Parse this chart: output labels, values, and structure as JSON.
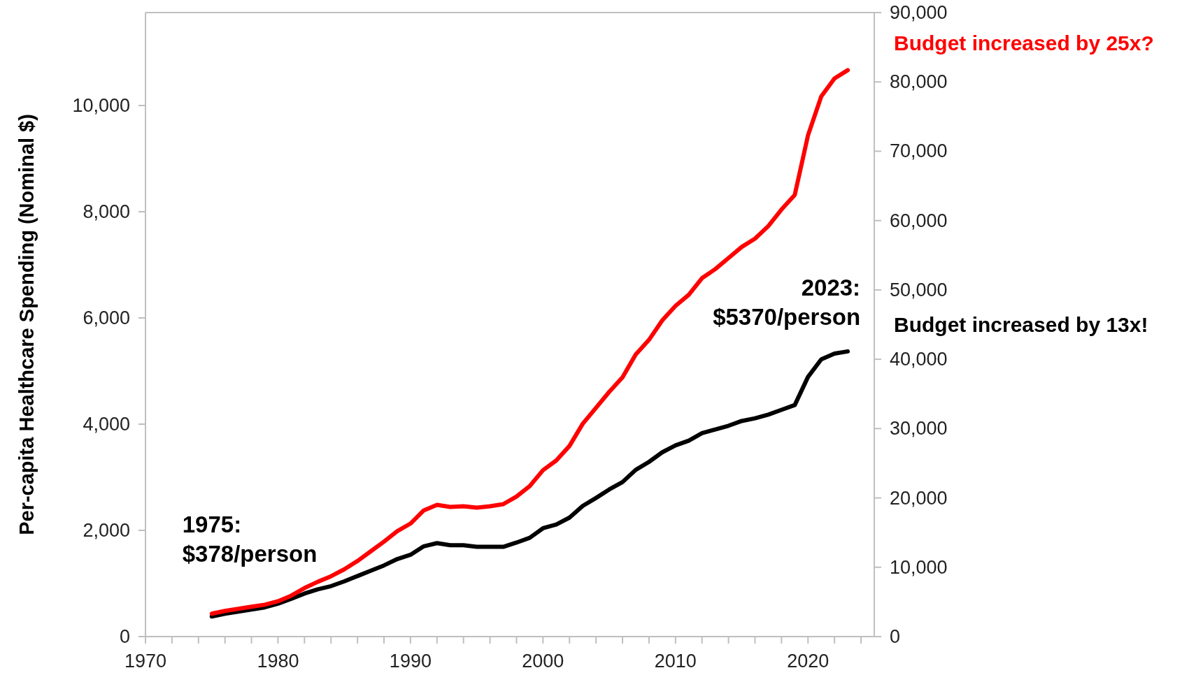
{
  "chart_data": {
    "type": "line",
    "ylabel": "Per-capita Healthcare Spending (Nominal $)",
    "x": [
      1975,
      1976,
      1977,
      1978,
      1979,
      1980,
      1981,
      1982,
      1983,
      1984,
      1985,
      1986,
      1987,
      1988,
      1989,
      1990,
      1991,
      1992,
      1993,
      1994,
      1995,
      1996,
      1997,
      1998,
      1999,
      2000,
      2001,
      2002,
      2003,
      2004,
      2005,
      2006,
      2007,
      2008,
      2009,
      2010,
      2011,
      2012,
      2013,
      2014,
      2015,
      2016,
      2017,
      2018,
      2019,
      2020,
      2021,
      2022,
      2023
    ],
    "xlim": [
      1970,
      2025
    ],
    "xticks": [
      1970,
      {
        "value": 1972,
        "label": null
      },
      {
        "value": 1974,
        "label": null
      },
      {
        "value": 1976,
        "label": null
      },
      {
        "value": 1978,
        "label": null
      },
      1980,
      {
        "value": 1982,
        "label": null
      },
      {
        "value": 1984,
        "label": null
      },
      {
        "value": 1986,
        "label": null
      },
      {
        "value": 1988,
        "label": null
      },
      1990,
      {
        "value": 1992,
        "label": null
      },
      {
        "value": 1994,
        "label": null
      },
      {
        "value": 1996,
        "label": null
      },
      {
        "value": 1998,
        "label": null
      },
      2000,
      {
        "value": 2002,
        "label": null
      },
      {
        "value": 2004,
        "label": null
      },
      {
        "value": 2006,
        "label": null
      },
      {
        "value": 2008,
        "label": null
      },
      2010,
      {
        "value": 2012,
        "label": null
      },
      {
        "value": 2014,
        "label": null
      },
      {
        "value": 2016,
        "label": null
      },
      {
        "value": 2018,
        "label": null
      },
      2020,
      {
        "value": 2022,
        "label": null
      },
      {
        "value": 2024,
        "label": null
      }
    ],
    "ylim": [
      0,
      11750
    ],
    "yticks": [
      {
        "value": 0,
        "label": "0"
      },
      {
        "value": 2000,
        "label": "2,000"
      },
      {
        "value": 4000,
        "label": "4,000"
      },
      {
        "value": 6000,
        "label": "6,000"
      },
      {
        "value": 8000,
        "label": "8,000"
      },
      {
        "value": 10000,
        "label": "10,000"
      }
    ],
    "y2lim": [
      0,
      90000
    ],
    "y2ticks": [
      {
        "value": 0,
        "label": "0"
      },
      {
        "value": 10000,
        "label": "10,000"
      },
      {
        "value": 20000,
        "label": "20,000"
      },
      {
        "value": 30000,
        "label": "30,000"
      },
      {
        "value": 40000,
        "label": "40,000"
      },
      {
        "value": 50000,
        "label": "50,000"
      },
      {
        "value": 60000,
        "label": "60,000"
      },
      {
        "value": 70000,
        "label": "70,000"
      },
      {
        "value": 80000,
        "label": "80,000"
      },
      {
        "value": 90000,
        "label": "90,000"
      }
    ],
    "grid": false,
    "series": [
      {
        "name": "Budget increased by 13x!",
        "color": "#000000",
        "values": [
          378,
          430,
          470,
          510,
          550,
          620,
          710,
          810,
          890,
          950,
          1040,
          1140,
          1240,
          1340,
          1460,
          1540,
          1700,
          1760,
          1720,
          1720,
          1690,
          1690,
          1690,
          1770,
          1860,
          2040,
          2110,
          2240,
          2460,
          2610,
          2770,
          2910,
          3140,
          3290,
          3470,
          3600,
          3690,
          3830,
          3900,
          3970,
          4060,
          4110,
          4180,
          4270,
          4360,
          4890,
          5220,
          5330,
          5370
        ]
      },
      {
        "name": "Budget increased by 25x?",
        "color": "#ff0000",
        "axis": "y2",
        "values": [
          3300,
          3700,
          4000,
          4300,
          4600,
          5100,
          5900,
          7000,
          7900,
          8700,
          9700,
          10900,
          12300,
          13700,
          15200,
          16300,
          18200,
          19000,
          18700,
          18800,
          18600,
          18800,
          19100,
          20200,
          21700,
          24000,
          25400,
          27500,
          30700,
          33000,
          35300,
          37400,
          40700,
          42800,
          45600,
          47700,
          49300,
          51700,
          53000,
          54600,
          56200,
          57400,
          59200,
          61600,
          63700,
          72300,
          77900,
          80500,
          81700
        ]
      }
    ],
    "annotations": [
      {
        "text": "1975:\n$378/person",
        "x": 1975,
        "y": 378
      },
      {
        "text": "2023:\n$5370/person",
        "x": 2023,
        "y": 5370
      }
    ]
  }
}
